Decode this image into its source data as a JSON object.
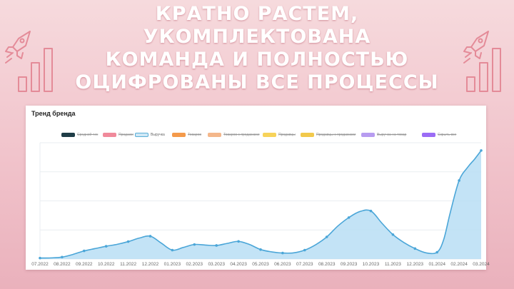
{
  "headline": {
    "line1": "Кратно растем, укомплектована",
    "line2": "команда и полностью",
    "line3": "оцифрованы все процессы"
  },
  "decorations": {
    "left": "rocket-and-bars-icon",
    "right": "rocket-and-bars-icon",
    "color": "#e48b98"
  },
  "card": {
    "title": "Тренд бренда"
  },
  "legend": [
    {
      "label": "Средний чек",
      "color": "#1f3d47",
      "active": false
    },
    {
      "label": "Продажи",
      "color": "#f08a9b",
      "active": false
    },
    {
      "label": "Выручка",
      "color": "#5aaed6",
      "active": true
    },
    {
      "label": "Товаров",
      "color": "#f49a4b",
      "active": false
    },
    {
      "label": "Товаров с продажами",
      "color": "#f4b78b",
      "active": false
    },
    {
      "label": "Продавцы",
      "color": "#f7d35a",
      "active": false
    },
    {
      "label": "Продавцы с продажами",
      "color": "#f2c94c",
      "active": false
    },
    {
      "label": "Выручка на товар",
      "color": "#b79cf0",
      "active": false
    },
    {
      "label": "Скрыть все",
      "color": "#9b6cf5",
      "active": false
    }
  ],
  "chart_data": {
    "type": "area",
    "title": "Тренд бренда",
    "xlabel": "",
    "ylabel": "",
    "y_axis_labels_visible": false,
    "grid": "horizontal",
    "legend_position": "top",
    "line_color": "#4ba6d8",
    "fill_color": "#b9def4",
    "categories": [
      "07.2022",
      "08.2022",
      "09.2022",
      "10.2022",
      "11.2022",
      "12.2022",
      "01.2023",
      "02.2023",
      "03.2023",
      "04.2023",
      "05.2023",
      "06.2023",
      "07.2023",
      "08.2023",
      "09.2023",
      "10.2023",
      "11.2023",
      "12.2023",
      "01.2024",
      "02.2024",
      "03.2024"
    ],
    "series": [
      {
        "name": "Выручка",
        "x": [
          0,
          0.5,
          1,
          1.5,
          2,
          2.5,
          3,
          3.5,
          4,
          4.5,
          5,
          5.5,
          6,
          6.5,
          7,
          7.5,
          8,
          8.5,
          9,
          9.5,
          10,
          10.5,
          11,
          11.5,
          12,
          12.5,
          13,
          13.5,
          14,
          14.5,
          15,
          15.5,
          16,
          16.5,
          17,
          17.5,
          18,
          18.3,
          18.6,
          19,
          19.4,
          19.7,
          20
        ],
        "y": [
          0.5,
          0.6,
          1.0,
          2.4,
          4.2,
          5.4,
          6.6,
          7.6,
          9.0,
          10.8,
          11.8,
          8.2,
          4.6,
          6.0,
          7.5,
          7.2,
          7.0,
          8.1,
          9.1,
          7.5,
          4.9,
          3.7,
          3.1,
          3.2,
          4.6,
          7.4,
          11.4,
          17.0,
          21.4,
          24.5,
          24.8,
          18.5,
          12.6,
          8.5,
          5.4,
          3.2,
          3.5,
          10.0,
          24.0,
          40.5,
          47.5,
          51.5,
          56.0
        ],
        "ylim": [
          0,
          60
        ]
      }
    ]
  }
}
